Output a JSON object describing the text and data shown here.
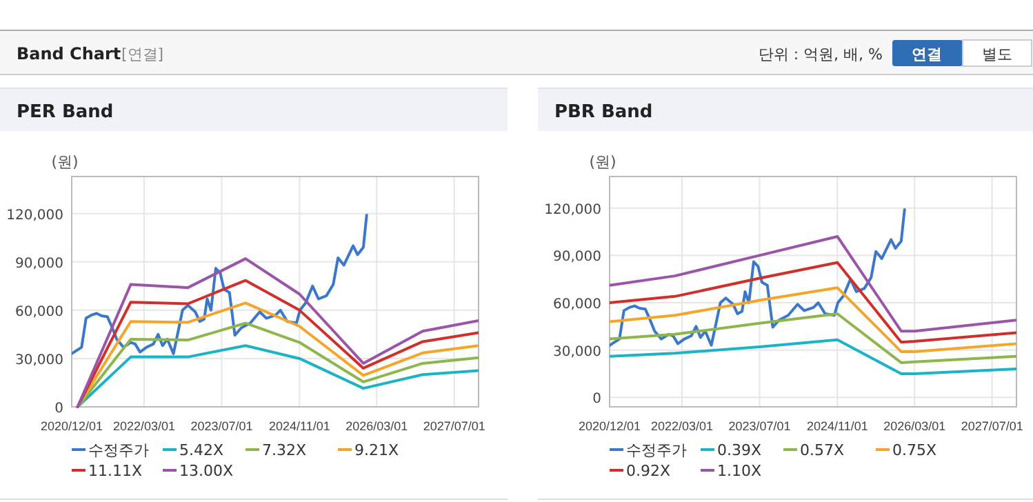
{
  "chart_data": [
    {
      "type": "line",
      "title": "PER Band",
      "ylabel": "(원)",
      "annotations": [
        "Band Chart",
        "[연결]",
        "단위 : 억원, 배, %",
        "연결",
        "별도"
      ],
      "xlim": [
        "2020-12-01",
        "2027-12-01"
      ],
      "ylim": [
        0,
        143000
      ],
      "xticks": [
        {
          "value": "2020-12-01",
          "label": "2020/12/01"
        },
        {
          "value": "2022-03-01",
          "label": "2022/03/01"
        },
        {
          "value": "2023-07-01",
          "label": "2023/07/01"
        },
        {
          "value": "2024-11-01",
          "label": "2024/11/01"
        },
        {
          "value": "2026-03-01",
          "label": "2026/03/01"
        },
        {
          "value": "2027-07-01",
          "label": "2027/07/01"
        }
      ],
      "yticks": [
        {
          "value": 0,
          "label": "0"
        },
        {
          "value": 30000,
          "label": "30,000"
        },
        {
          "value": 60000,
          "label": "60,000"
        },
        {
          "value": 90000,
          "label": "90,000"
        },
        {
          "value": 120000,
          "label": "120,000"
        }
      ],
      "grid": true,
      "legend": "bottom",
      "marker": "none",
      "line_style": "solid",
      "series": [
        {
          "name": "수정주가",
          "color": "#3b78c9",
          "x": [
            "2020-12-01",
            "2020-12-24",
            "2021-02-01",
            "2021-03-01",
            "2021-04-04",
            "2021-05-07",
            "2021-06-07",
            "2021-07-13",
            "2021-08-13",
            "2021-09-10",
            "2021-10-22",
            "2021-12-07",
            "2022-01-04",
            "2022-02-03",
            "2022-03-16",
            "2022-04-28",
            "2022-05-28",
            "2022-06-25",
            "2022-07-25",
            "2022-09-01",
            "2022-10-01",
            "2022-10-28",
            "2022-12-01",
            "2023-01-16",
            "2023-02-13",
            "2023-03-13",
            "2023-04-01",
            "2023-04-25",
            "2023-05-25",
            "2023-06-22",
            "2023-07-16",
            "2023-08-19",
            "2023-09-22",
            "2023-11-01",
            "2023-12-28",
            "2024-02-25",
            "2024-04-07",
            "2024-06-04",
            "2024-07-04",
            "2024-08-16",
            "2024-10-13",
            "2024-11-04",
            "2024-12-10",
            "2025-01-22",
            "2025-02-28",
            "2025-04-19",
            "2025-06-01",
            "2025-07-01",
            "2025-08-07",
            "2025-10-04",
            "2025-11-01",
            "2025-12-07",
            "2025-12-28"
          ],
          "values": [
            33000,
            34500,
            37000,
            55000,
            57000,
            58000,
            56500,
            56000,
            49000,
            42000,
            37000,
            40000,
            39000,
            34000,
            37000,
            39000,
            45000,
            38000,
            42000,
            33000,
            47000,
            60000,
            63000,
            59000,
            53000,
            54500,
            67000,
            60000,
            86000,
            83000,
            73000,
            71000,
            44500,
            49000,
            52000,
            59000,
            55000,
            57000,
            60000,
            53000,
            52000,
            60000,
            64500,
            75000,
            67000,
            69000,
            76000,
            92500,
            88000,
            100000,
            94500,
            99000,
            119000
          ]
        },
        {
          "name": "5.42X",
          "color": "#1bb3c6",
          "x": [
            "2021-01-07",
            "2021-12-07",
            "2022-12-01",
            "2023-11-28",
            "2024-11-01",
            "2025-12-07",
            "2026-12-15",
            "2027-12-01"
          ],
          "values": [
            0,
            31000,
            31000,
            38000,
            30000,
            11500,
            20000,
            22500
          ]
        },
        {
          "name": "7.32X",
          "color": "#8db64c",
          "x": [
            "2021-01-07",
            "2021-12-07",
            "2022-12-01",
            "2023-11-28",
            "2024-11-01",
            "2025-12-07",
            "2026-12-15",
            "2027-12-01"
          ],
          "values": [
            0,
            42000,
            41500,
            52000,
            40000,
            15500,
            27000,
            30500
          ]
        },
        {
          "name": "9.21X",
          "color": "#f4a62a",
          "x": [
            "2021-01-07",
            "2021-12-07",
            "2022-12-01",
            "2023-11-28",
            "2024-11-01",
            "2025-12-07",
            "2026-12-15",
            "2027-12-01"
          ],
          "values": [
            0,
            53000,
            52500,
            64500,
            50000,
            19500,
            33500,
            38000
          ]
        },
        {
          "name": "11.11X",
          "color": "#d0302b",
          "x": [
            "2021-01-07",
            "2021-12-07",
            "2022-12-01",
            "2023-11-28",
            "2024-11-01",
            "2025-12-07",
            "2026-12-15",
            "2027-12-01"
          ],
          "values": [
            0,
            65000,
            64000,
            78500,
            60000,
            24000,
            40500,
            46000
          ]
        },
        {
          "name": "13.00X",
          "color": "#9a55a8",
          "x": [
            "2021-01-07",
            "2021-12-07",
            "2022-12-01",
            "2023-11-28",
            "2024-11-01",
            "2025-12-07",
            "2026-12-15",
            "2027-12-01"
          ],
          "values": [
            0,
            76000,
            74000,
            92000,
            70000,
            27000,
            47000,
            53500
          ]
        }
      ]
    },
    {
      "type": "line",
      "title": "PBR Band",
      "ylabel": "(원)",
      "xlim": [
        "2020-12-01",
        "2027-12-01"
      ],
      "ylim": [
        -6000,
        140000
      ],
      "xticks": [
        {
          "value": "2020-12-01",
          "label": "2020/12/01"
        },
        {
          "value": "2022-03-01",
          "label": "2022/03/01"
        },
        {
          "value": "2023-07-01",
          "label": "2023/07/01"
        },
        {
          "value": "2024-11-01",
          "label": "2024/11/01"
        },
        {
          "value": "2026-03-01",
          "label": "2026/03/01"
        },
        {
          "value": "2027-07-01",
          "label": "2027/07/01"
        }
      ],
      "yticks": [
        {
          "value": 0,
          "label": "0"
        },
        {
          "value": 30000,
          "label": "30,000"
        },
        {
          "value": 60000,
          "label": "60,000"
        },
        {
          "value": 90000,
          "label": "90,000"
        },
        {
          "value": 120000,
          "label": "120,000"
        }
      ],
      "grid": true,
      "legend": "bottom",
      "marker": "none",
      "line_style": "solid",
      "series": [
        {
          "name": "수정주가",
          "color": "#3b78c9",
          "x": [
            "2020-12-01",
            "2020-12-24",
            "2021-02-01",
            "2021-03-01",
            "2021-04-04",
            "2021-05-07",
            "2021-06-07",
            "2021-07-13",
            "2021-08-13",
            "2021-09-10",
            "2021-10-22",
            "2021-12-07",
            "2022-01-04",
            "2022-02-03",
            "2022-03-16",
            "2022-04-28",
            "2022-05-28",
            "2022-06-25",
            "2022-07-25",
            "2022-09-01",
            "2022-10-01",
            "2022-10-28",
            "2022-12-01",
            "2023-01-16",
            "2023-02-13",
            "2023-03-13",
            "2023-04-01",
            "2023-04-25",
            "2023-05-25",
            "2023-06-22",
            "2023-07-16",
            "2023-08-19",
            "2023-09-22",
            "2023-11-01",
            "2023-12-28",
            "2024-02-25",
            "2024-04-07",
            "2024-06-04",
            "2024-07-04",
            "2024-08-16",
            "2024-10-13",
            "2024-11-04",
            "2024-12-10",
            "2025-01-22",
            "2025-02-28",
            "2025-04-19",
            "2025-06-01",
            "2025-07-01",
            "2025-08-07",
            "2025-10-04",
            "2025-11-01",
            "2025-12-07",
            "2025-12-28"
          ],
          "values": [
            33000,
            34500,
            37000,
            55000,
            57000,
            58000,
            56500,
            56000,
            49000,
            42000,
            37000,
            40000,
            39000,
            34000,
            37000,
            39000,
            45000,
            38000,
            42000,
            33000,
            47000,
            60000,
            63000,
            59000,
            53000,
            54500,
            67000,
            60000,
            86000,
            83000,
            73000,
            71000,
            44500,
            49000,
            52000,
            59000,
            55000,
            57000,
            60000,
            53000,
            52000,
            60000,
            64500,
            75000,
            67000,
            69000,
            76000,
            92500,
            88000,
            100000,
            94500,
            99000,
            119000
          ]
        },
        {
          "name": "0.39X",
          "color": "#1bb3c6",
          "x": [
            "2020-12-01",
            "2022-01-15",
            "2023-07-01",
            "2024-11-01",
            "2025-12-07",
            "2026-03-01",
            "2027-12-01"
          ],
          "values": [
            26000,
            28000,
            32000,
            36500,
            15000,
            15000,
            18000
          ]
        },
        {
          "name": "0.57X",
          "color": "#8db64c",
          "x": [
            "2020-12-01",
            "2022-01-15",
            "2023-07-01",
            "2024-11-01",
            "2025-12-07",
            "2026-03-01",
            "2027-12-01"
          ],
          "values": [
            37000,
            40000,
            47000,
            53000,
            22000,
            22500,
            26000
          ]
        },
        {
          "name": "0.75X",
          "color": "#f4a62a",
          "x": [
            "2020-12-01",
            "2022-01-15",
            "2023-07-01",
            "2024-11-01",
            "2025-12-07",
            "2026-03-01",
            "2027-12-01"
          ],
          "values": [
            48000,
            52000,
            61500,
            69500,
            29000,
            29000,
            34000
          ]
        },
        {
          "name": "0.92X",
          "color": "#d0302b",
          "x": [
            "2020-12-01",
            "2022-01-15",
            "2023-07-01",
            "2024-11-01",
            "2025-12-07",
            "2026-03-01",
            "2027-12-01"
          ],
          "values": [
            60000,
            64000,
            75500,
            85500,
            35000,
            35500,
            41000
          ]
        },
        {
          "name": "1.10X",
          "color": "#9a55a8",
          "x": [
            "2020-12-01",
            "2022-01-15",
            "2023-07-01",
            "2024-11-01",
            "2025-12-07",
            "2026-03-01",
            "2027-12-01"
          ],
          "values": [
            71000,
            77000,
            90000,
            102000,
            42000,
            42000,
            49000
          ]
        }
      ]
    }
  ]
}
